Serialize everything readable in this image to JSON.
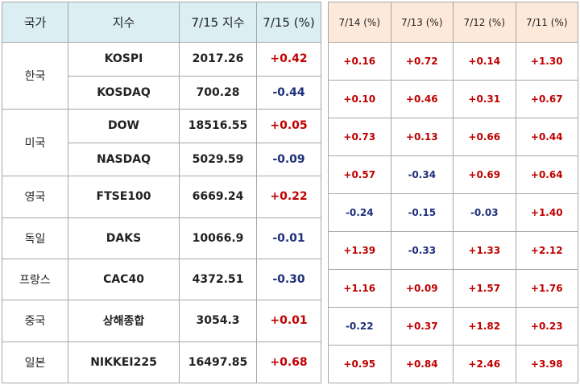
{
  "left_table": {
    "headers": [
      "국가",
      "지수",
      "7/15 지수",
      "7/15 (%)"
    ],
    "groups": [
      {
        "country": "한국",
        "rows": [
          [
            "KOSPI",
            "2017.26",
            "+0.42"
          ],
          [
            "KOSDAQ",
            "700.28",
            "-0.44"
          ]
        ]
      },
      {
        "country": "미국",
        "rows": [
          [
            "DOW",
            "18516.55",
            "+0.05"
          ],
          [
            "NASDAQ",
            "5029.59",
            "-0.09"
          ]
        ]
      },
      {
        "country": "영국",
        "rows": [
          [
            "FTSE100",
            "6669.24",
            "+0.22"
          ]
        ]
      },
      {
        "country": "독일",
        "rows": [
          [
            "DAKS",
            "10066.9",
            "-0.01"
          ]
        ]
      },
      {
        "country": "프랑스",
        "rows": [
          [
            "CAC40",
            "4372.51",
            "-0.30"
          ]
        ]
      },
      {
        "country": "중국",
        "rows": [
          [
            "상해종합",
            "3054.3",
            "+0.01"
          ]
        ]
      },
      {
        "country": "일본",
        "rows": [
          [
            "NIKKEI225",
            "16497.85",
            "+0.68"
          ]
        ]
      }
    ]
  },
  "right_table": {
    "headers": [
      "7/14 (%)",
      "7/13 (%)",
      "7/12 (%)",
      "7/11 (%)"
    ],
    "rows": [
      [
        "+0.16",
        "+0.72",
        "+0.14",
        "+1.30"
      ],
      [
        "+0.10",
        "+0.46",
        "+0.31",
        "+0.67"
      ],
      [
        "+0.73",
        "+0.13",
        "+0.66",
        "+0.44"
      ],
      [
        "+0.57",
        "-0.34",
        "+0.69",
        "+0.64"
      ],
      [
        "-0.24",
        "-0.15",
        "-0.03",
        "+1.40"
      ],
      [
        "+1.39",
        "-0.33",
        "+1.33",
        "+2.12"
      ],
      [
        "+1.16",
        "+0.09",
        "+1.57",
        "+1.76"
      ],
      [
        "-0.22",
        "+0.37",
        "+1.82",
        "+0.23"
      ],
      [
        "+0.95",
        "+0.84",
        "+2.46",
        "+3.98"
      ]
    ]
  }
}
